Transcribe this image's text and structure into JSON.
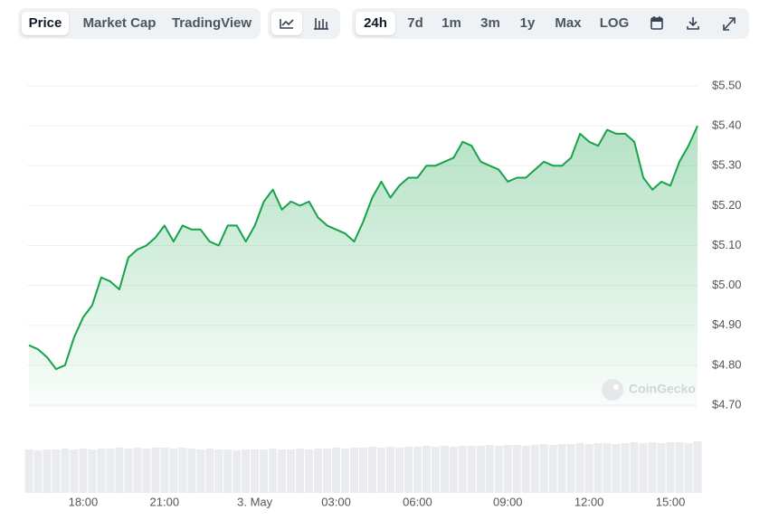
{
  "toolbar": {
    "views": [
      "Price",
      "Market Cap",
      "TradingView"
    ],
    "ranges": [
      "24h",
      "7d",
      "1m",
      "3m",
      "1y",
      "Max",
      "LOG"
    ]
  },
  "watermark": "CoinGecko",
  "chart_data": {
    "type": "line",
    "color": "#16a34a",
    "categories": [
      null,
      null,
      null,
      null,
      null,
      null,
      "18:00",
      null,
      null,
      null,
      null,
      null,
      null,
      null,
      null,
      "21:00",
      null,
      null,
      null,
      null,
      null,
      null,
      null,
      null,
      null,
      "3. May",
      null,
      null,
      null,
      null,
      null,
      null,
      null,
      null,
      "03:00",
      null,
      null,
      null,
      null,
      null,
      null,
      null,
      null,
      "06:00",
      null,
      null,
      null,
      null,
      null,
      null,
      null,
      null,
      null,
      "09:00",
      null,
      null,
      null,
      null,
      null,
      null,
      null,
      null,
      "12:00",
      null,
      null,
      null,
      null,
      null,
      null,
      null,
      null,
      "15:00",
      null,
      null,
      null
    ],
    "values": [
      4.85,
      4.84,
      4.82,
      4.79,
      4.8,
      4.87,
      4.92,
      4.95,
      5.02,
      5.01,
      4.99,
      5.07,
      5.09,
      5.1,
      5.12,
      5.15,
      5.11,
      5.15,
      5.14,
      5.14,
      5.11,
      5.1,
      5.15,
      5.15,
      5.11,
      5.15,
      5.21,
      5.24,
      5.19,
      5.21,
      5.2,
      5.21,
      5.17,
      5.15,
      5.14,
      5.13,
      5.11,
      5.16,
      5.22,
      5.26,
      5.22,
      5.25,
      5.27,
      5.27,
      5.3,
      5.3,
      5.31,
      5.32,
      5.36,
      5.35,
      5.31,
      5.3,
      5.29,
      5.26,
      5.27,
      5.27,
      5.29,
      5.31,
      5.3,
      5.3,
      5.32,
      5.38,
      5.36,
      5.35,
      5.39,
      5.38,
      5.38,
      5.36,
      5.27,
      5.24,
      5.26,
      5.25,
      5.31,
      5.35,
      5.4
    ],
    "volume": [
      48,
      47,
      48,
      48,
      49,
      48,
      49,
      48,
      49,
      49,
      50,
      49,
      50,
      49,
      50,
      50,
      49,
      50,
      49,
      48,
      49,
      48,
      48,
      47,
      48,
      48,
      48,
      49,
      48,
      48,
      49,
      48,
      49,
      49,
      50,
      49,
      50,
      50,
      51,
      50,
      51,
      50,
      51,
      51,
      52,
      51,
      52,
      51,
      52,
      52,
      52,
      53,
      52,
      53,
      53,
      52,
      53,
      54,
      53,
      54,
      54,
      55,
      54,
      55,
      55,
      54,
      55,
      56,
      55,
      56,
      55,
      56,
      56,
      55,
      57
    ],
    "ylim": [
      4.684,
      5.5
    ],
    "yticks": [
      {
        "value": 4.7,
        "label": "$4.70"
      },
      {
        "value": 4.8,
        "label": "$4.80"
      },
      {
        "value": 4.9,
        "label": "$4.90"
      },
      {
        "value": 5.0,
        "label": "$5.00"
      },
      {
        "value": 5.1,
        "label": "$5.10"
      },
      {
        "value": 5.2,
        "label": "$5.20"
      },
      {
        "value": 5.3,
        "label": "$5.30"
      },
      {
        "value": 5.4,
        "label": "$5.40"
      },
      {
        "value": 5.5,
        "label": "$5.50"
      }
    ],
    "grid": true
  }
}
